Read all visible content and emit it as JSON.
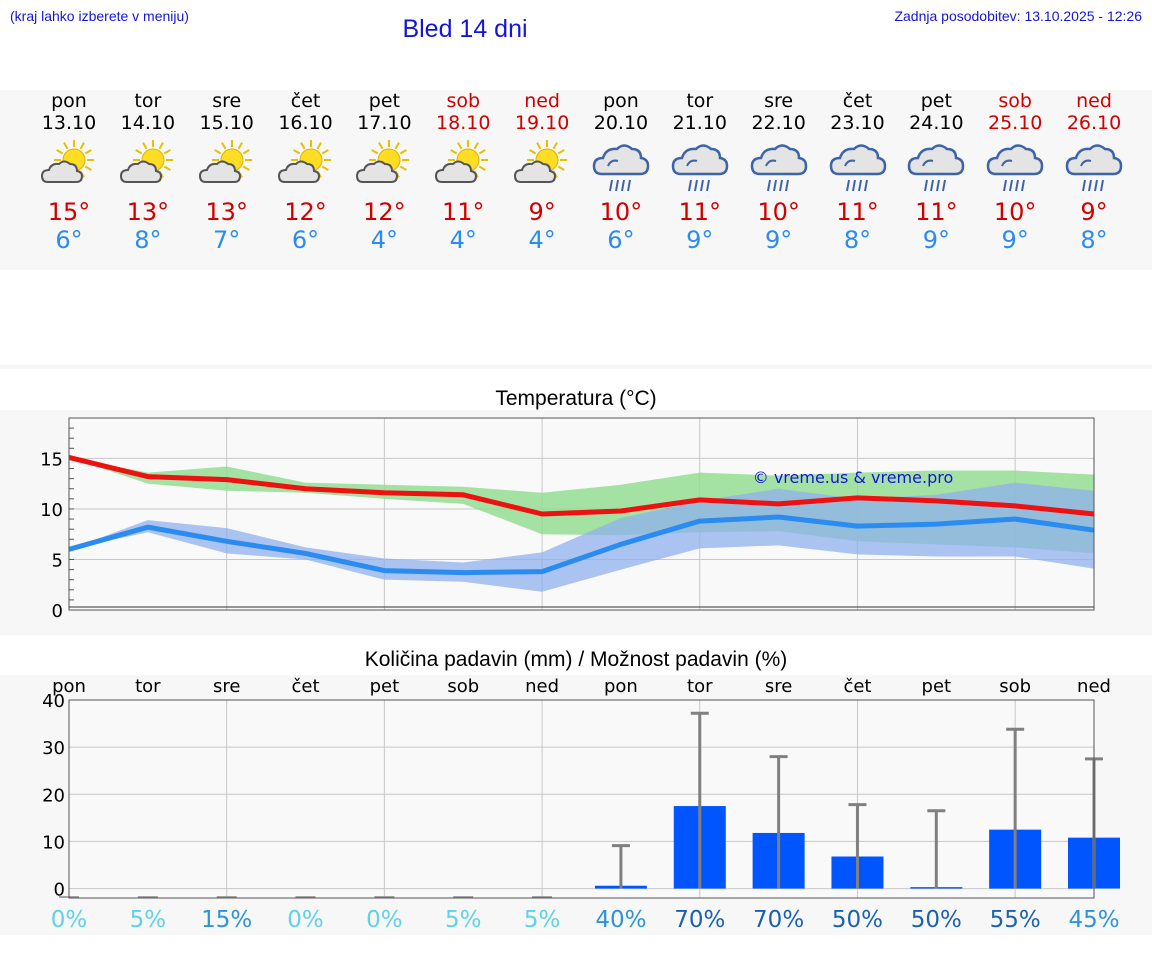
{
  "header": {
    "hint": "(kraj lahko izberete v meniju)",
    "title": "Bled 14 dni",
    "updated": "Zadnja posodobitev: 13.10.2025 - 12:26"
  },
  "days": [
    {
      "name": "pon",
      "date": "13.10",
      "weekend": false,
      "icon": "sun-cloud",
      "max": "15°",
      "min": "6°"
    },
    {
      "name": "tor",
      "date": "14.10",
      "weekend": false,
      "icon": "sun-cloud",
      "max": "13°",
      "min": "8°"
    },
    {
      "name": "sre",
      "date": "15.10",
      "weekend": false,
      "icon": "sun-cloud",
      "max": "13°",
      "min": "7°"
    },
    {
      "name": "čet",
      "date": "16.10",
      "weekend": false,
      "icon": "sun-cloud",
      "max": "12°",
      "min": "6°"
    },
    {
      "name": "pet",
      "date": "17.10",
      "weekend": false,
      "icon": "sun-cloud",
      "max": "12°",
      "min": "4°"
    },
    {
      "name": "sob",
      "date": "18.10",
      "weekend": true,
      "icon": "sun-cloud",
      "max": "11°",
      "min": "4°"
    },
    {
      "name": "ned",
      "date": "19.10",
      "weekend": true,
      "icon": "sun-cloud",
      "max": "9°",
      "min": "4°"
    },
    {
      "name": "pon",
      "date": "20.10",
      "weekend": false,
      "icon": "rain-cloud",
      "max": "10°",
      "min": "6°"
    },
    {
      "name": "tor",
      "date": "21.10",
      "weekend": false,
      "icon": "rain-cloud",
      "max": "11°",
      "min": "9°"
    },
    {
      "name": "sre",
      "date": "22.10",
      "weekend": false,
      "icon": "rain-cloud",
      "max": "10°",
      "min": "9°"
    },
    {
      "name": "čet",
      "date": "23.10",
      "weekend": false,
      "icon": "rain-cloud",
      "max": "11°",
      "min": "8°"
    },
    {
      "name": "pet",
      "date": "24.10",
      "weekend": false,
      "icon": "rain-cloud",
      "max": "11°",
      "min": "9°"
    },
    {
      "name": "sob",
      "date": "25.10",
      "weekend": true,
      "icon": "rain-cloud",
      "max": "10°",
      "min": "9°"
    },
    {
      "name": "ned",
      "date": "26.10",
      "weekend": true,
      "icon": "rain-cloud",
      "max": "9°",
      "min": "8°"
    }
  ],
  "colors": {
    "max_line": "#ee1111",
    "max_band": "#8fdc8f",
    "min_line": "#2a8cf0",
    "min_band": "#8fb0ee",
    "bar": "#0055ff",
    "whisker": "#808080",
    "grid": "#c8c8c8",
    "title_blue": "#1515d8"
  },
  "chart_data": [
    {
      "type": "line",
      "title": "Temperatura (°C)",
      "watermark": "© vreme.us & vreme.pro",
      "ylim": [
        0,
        19
      ],
      "yticks": [
        0,
        5,
        10,
        15
      ],
      "x": [
        0,
        1,
        2,
        3,
        4,
        5,
        6,
        7,
        8,
        9,
        10,
        11,
        12,
        13
      ],
      "series": [
        {
          "name": "max",
          "values": [
            15.1,
            13.2,
            12.9,
            12.0,
            11.6,
            11.4,
            9.5,
            9.8,
            10.9,
            10.5,
            11.1,
            10.8,
            10.3,
            9.5
          ],
          "band_low": [
            15.1,
            12.5,
            11.8,
            11.6,
            11.0,
            10.5,
            7.5,
            7.4,
            7.7,
            7.8,
            6.8,
            6.5,
            6.2,
            5.6
          ],
          "band_high": [
            15.1,
            13.6,
            14.2,
            12.6,
            12.4,
            12.2,
            11.6,
            12.4,
            13.6,
            13.3,
            13.6,
            13.8,
            13.8,
            13.4
          ]
        },
        {
          "name": "min",
          "values": [
            6.0,
            8.2,
            6.8,
            5.6,
            3.9,
            3.7,
            3.8,
            6.5,
            8.8,
            9.2,
            8.3,
            8.5,
            9.0,
            7.9
          ],
          "band_low": [
            6.0,
            7.7,
            5.6,
            5.0,
            3.0,
            2.8,
            1.8,
            4.0,
            6.1,
            6.4,
            5.5,
            5.3,
            5.3,
            4.1
          ],
          "band_high": [
            6.0,
            8.9,
            8.1,
            6.2,
            5.1,
            4.7,
            5.7,
            9.1,
            10.8,
            12.0,
            11.0,
            11.4,
            12.6,
            11.8
          ]
        }
      ]
    },
    {
      "type": "bar",
      "title": "Količina padavin (mm) / Možnost padavin (%)",
      "categories": [
        "pon",
        "tor",
        "sre",
        "čet",
        "pet",
        "sob",
        "ned",
        "pon",
        "tor",
        "sre",
        "čet",
        "pet",
        "sob",
        "ned"
      ],
      "ylim": [
        -2,
        40
      ],
      "yticks": [
        "0",
        "10",
        "20",
        "30",
        "40"
      ],
      "values": [
        0,
        0,
        0,
        0,
        0,
        0,
        0,
        0.6,
        17.5,
        11.8,
        6.8,
        0.3,
        12.5,
        10.8
      ],
      "whisker_high": [
        0,
        0,
        0,
        0,
        0,
        0,
        0,
        9.1,
        37.2,
        28.0,
        17.8,
        16.5,
        33.8,
        27.5
      ],
      "probability": [
        "0%",
        "5%",
        "15%",
        "0%",
        "0%",
        "5%",
        "5%",
        "40%",
        "70%",
        "70%",
        "50%",
        "50%",
        "55%",
        "45%"
      ],
      "probability_values": [
        0,
        5,
        15,
        0,
        0,
        5,
        5,
        40,
        70,
        70,
        50,
        50,
        55,
        45
      ]
    }
  ]
}
